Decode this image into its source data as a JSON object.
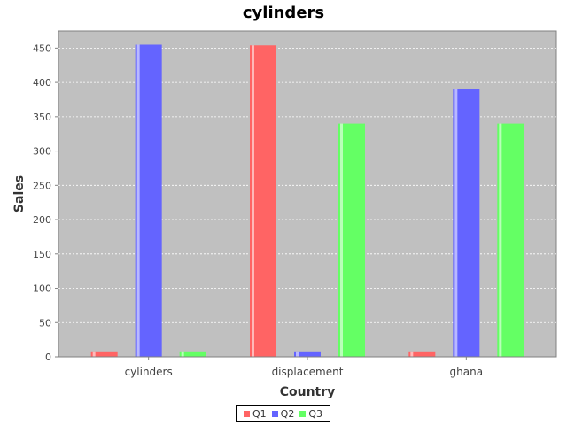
{
  "chart_data": {
    "type": "bar",
    "title": "cylinders",
    "xlabel": "Country",
    "ylabel": "Sales",
    "categories": [
      "cylinders",
      "displacement",
      "ghana"
    ],
    "series": [
      {
        "name": "Q1",
        "color": "#ff6464",
        "values": [
          8,
          454,
          8
        ]
      },
      {
        "name": "Q2",
        "color": "#6464ff",
        "values": [
          455,
          8,
          390
        ]
      },
      {
        "name": "Q3",
        "color": "#64ff64",
        "values": [
          8,
          340,
          340
        ]
      }
    ],
    "ylim": [
      0,
      475
    ],
    "yticks": [
      0,
      50,
      100,
      150,
      200,
      250,
      300,
      350,
      400,
      450
    ],
    "grid": true,
    "legend_position": "bottom",
    "plot_background": "#c0c0c0"
  }
}
